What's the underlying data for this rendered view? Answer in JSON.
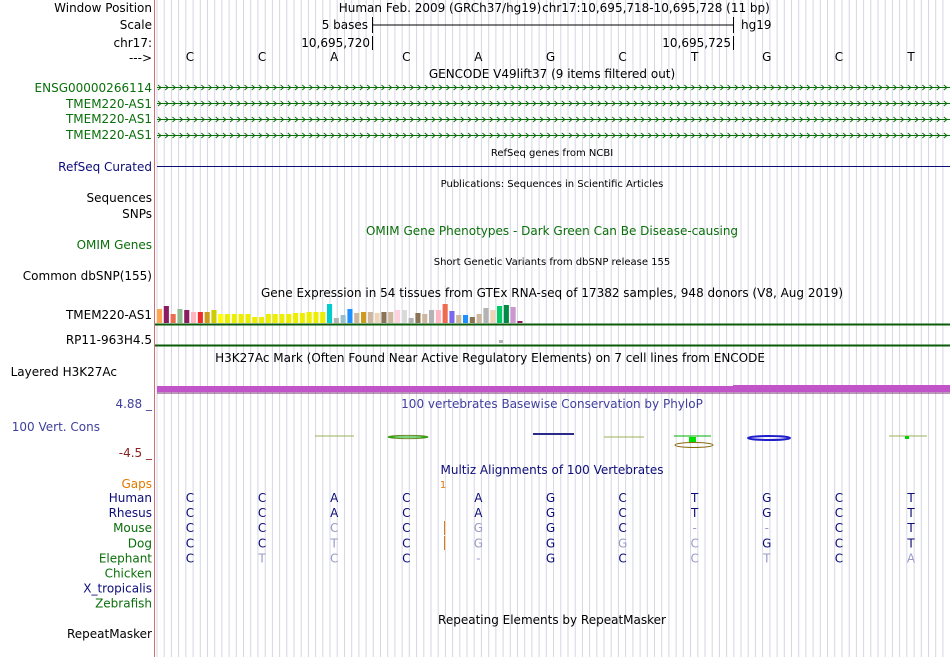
{
  "colors": {
    "gencode": "#0a6e0a",
    "refseq": "#0c0c78",
    "omim": "#0a6e0a",
    "conservation": "#3f3f9e",
    "multiz": "#0c0c78",
    "gaps": "#e07a00",
    "h3k27ac": "#c054c8",
    "divider": "#cf7070",
    "gridline": "#d6d6e4",
    "gtex_baseline": "#0a5b0a"
  },
  "header": {
    "window_position_label": "Window Position",
    "scale_label": "Scale",
    "chrom_label": "chr17:",
    "strand_label": "--->",
    "assembly": "Human Feb. 2009 (GRCh37/hg19)",
    "position": "chr17:10,695,718-10,695,728 (11 bp)",
    "scale_text": "5 bases",
    "db": "hg19",
    "coord_left": "10,695,720",
    "coord_right": "10,695,725",
    "bases": [
      "C",
      "C",
      "A",
      "C",
      "A",
      "G",
      "C",
      "T",
      "G",
      "C",
      "T"
    ]
  },
  "tracks": {
    "gencode": {
      "title": "GENCODE V49lift37 (9 items filtered out)",
      "items": [
        "ENSG00000266114",
        "TMEM220-AS1",
        "TMEM220-AS1",
        "TMEM220-AS1"
      ]
    },
    "refseq": {
      "title": "RefSeq genes from NCBI",
      "label": "RefSeq Curated"
    },
    "publications": {
      "title": "Publications: Sequences in Scientific Articles",
      "labels": [
        "Sequences",
        "SNPs"
      ]
    },
    "omim": {
      "title": "OMIM Gene Phenotypes - Dark Green Can Be Disease-causing",
      "label": "OMIM Genes"
    },
    "dbsnp": {
      "title": "Short Genetic Variants from dbSNP release 155",
      "label": "Common dbSNP(155)"
    },
    "gtex": {
      "title": "Gene Expression in 54 tissues from GTEx RNA-seq of 17382 samples, 948 donors (V8, Aug 2019)",
      "labels": [
        "TMEM220-AS1",
        "RP11-963H4.5"
      ],
      "levels": [
        0.7,
        0.85,
        0.45,
        0.7,
        0.65,
        0.55,
        0.55,
        0.55,
        0.65,
        0.45,
        0.45,
        0.45,
        0.45,
        0.45,
        0.3,
        0.3,
        0.45,
        0.45,
        0.45,
        0.45,
        0.5,
        0.5,
        0.55,
        0.55,
        0.55,
        0.95,
        0.25,
        0.4,
        0.7,
        0.5,
        0.55,
        0.55,
        0.5,
        0.55,
        0.55,
        0.65,
        0.65,
        0.25,
        0.5,
        0.45,
        0.65,
        0.65,
        0.95,
        0.6,
        0.4,
        0.4,
        0.3,
        0.45,
        0.75,
        0.65,
        0.85,
        0.9,
        0.8,
        0.1
      ],
      "tissue_colors": [
        "#ffa54f",
        "#8b1c62",
        "#ee6a50",
        "#8fbc8f",
        "#8b1c62",
        "#ffb6c1",
        "#ee2c2c",
        "#cd9b1d",
        "#cdcd00",
        "#ffff00",
        "#eeee00",
        "#eeee00",
        "#eeee00",
        "#eeee00",
        "#eeee00",
        "#eeee00",
        "#eeee00",
        "#eeee00",
        "#eeee00",
        "#eeee00",
        "#eeee00",
        "#eeee00",
        "#eeee00",
        "#eeee00",
        "#eeee00",
        "#00cdcd",
        "#b3b3b3",
        "#9ac0cd",
        "#1e90ff",
        "#cdb79e",
        "#cd9b1d",
        "#cdb79e",
        "#eed5b7",
        "#8b7355",
        "#cdb79e",
        "#ffd1dc",
        "#d9d9d9",
        "#b3b3b3",
        "#8b7355",
        "#cdb79e",
        "#b3b3b3",
        "#ffb6c1",
        "#ee6a50",
        "#7a67ee",
        "#cdb79e",
        "#1e90ff",
        "#8b7355",
        "#cdb79e",
        "#b3b3b3",
        "#eed5b7",
        "#00cd66",
        "#008b45",
        "#cd96cd",
        "#8b1c62"
      ]
    },
    "h3k27ac": {
      "title": "H3K27Ac Mark (Often Found Near Active Regulatory Elements) on 7 cell lines from ENCODE",
      "label": "Layered H3K27Ac"
    },
    "conservation": {
      "title": "100 vertebrates Basewise Conservation by PhyloP",
      "label": "100 Vert. Cons",
      "max_label": "4.88 _",
      "min_label": "-4.5 _"
    },
    "multiz": {
      "title": "Multiz Alignments of 100 Vertebrates",
      "gaps_label": "Gaps",
      "gap_marker": "1",
      "species": [
        {
          "name": "Human",
          "bases": [
            "C",
            "C",
            "A",
            "C",
            "A",
            "G",
            "C",
            "T",
            "G",
            "C",
            "T"
          ],
          "weak": []
        },
        {
          "name": "Rhesus",
          "bases": [
            "C",
            "C",
            "A",
            "C",
            "A",
            "G",
            "C",
            "T",
            "G",
            "C",
            "T"
          ],
          "weak": []
        },
        {
          "name": "Mouse",
          "bases": [
            "C",
            "C",
            "C",
            "C",
            "G",
            "G",
            "C",
            "-",
            "-",
            "C",
            "T"
          ],
          "weak": [
            2,
            4,
            7,
            8
          ]
        },
        {
          "name": "Dog",
          "bases": [
            "C",
            "C",
            "T",
            "C",
            "G",
            "G",
            "G",
            "C",
            "G",
            "C",
            "T"
          ],
          "weak": [
            2,
            4,
            6,
            7
          ]
        },
        {
          "name": "Elephant",
          "bases": [
            "C",
            "T",
            "C",
            "C",
            "-",
            "G",
            "C",
            "C",
            "T",
            "C",
            "A"
          ],
          "weak": [
            1,
            2,
            4,
            7,
            8,
            10
          ]
        },
        {
          "name": "Chicken",
          "bases": [],
          "weak": []
        },
        {
          "name": "X_tropicalis",
          "bases": [],
          "weak": []
        },
        {
          "name": "Zebrafish",
          "bases": [],
          "weak": []
        }
      ]
    },
    "repeatmasker": {
      "title": "Repeating Elements by RepeatMasker",
      "label": "RepeatMasker"
    }
  }
}
